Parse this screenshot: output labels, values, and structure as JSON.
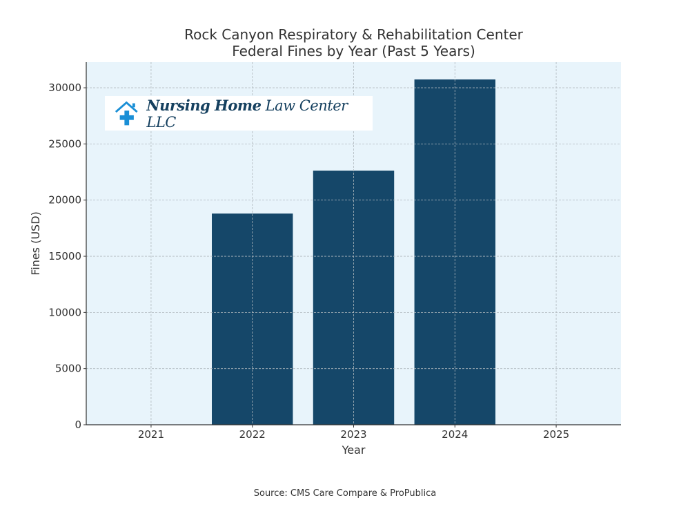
{
  "chart_data": {
    "type": "bar",
    "title": "Rock Canyon Respiratory & Rehabilitation Center",
    "subtitle": "Federal Fines by Year (Past 5 Years)",
    "xlabel": "Year",
    "ylabel": "Fines (USD)",
    "categories": [
      "2021",
      "2022",
      "2023",
      "2024",
      "2025"
    ],
    "values": [
      0,
      18800,
      22625,
      30740,
      0
    ],
    "ylim": [
      0,
      32280
    ],
    "yticks": [
      0,
      5000,
      10000,
      15000,
      20000,
      25000,
      30000
    ],
    "grid": true,
    "bar_color": "#154769",
    "background_color": "#e8f4fb"
  },
  "logo": {
    "bold": "Nursing Home",
    "regular": "Law Center LLC",
    "icon": "house-medical-cross-icon",
    "icon_color": "#1a8fd6"
  },
  "source": "Source: CMS Care Compare & ProPublica"
}
